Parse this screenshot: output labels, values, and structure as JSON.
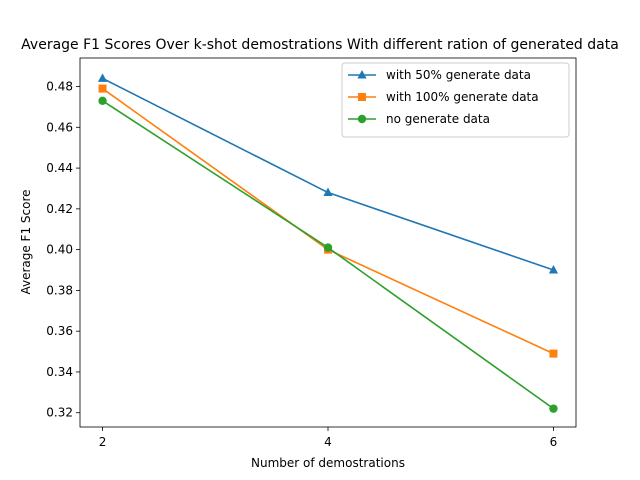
{
  "chart_data": {
    "type": "line",
    "title": "Average F1 Scores Over k-shot demostrations With different ration of generated data",
    "xlabel": "Number of demostrations",
    "ylabel": "Average F1 Score",
    "x": [
      2,
      4,
      6
    ],
    "xticks": [
      "2",
      "4",
      "6"
    ],
    "ylim": [
      0.313,
      0.494
    ],
    "yticks": [
      "0.32",
      "0.34",
      "0.36",
      "0.38",
      "0.40",
      "0.42",
      "0.44",
      "0.46",
      "0.48"
    ],
    "ytick_values": [
      0.32,
      0.34,
      0.36,
      0.38,
      0.4,
      0.42,
      0.44,
      0.46,
      0.48
    ],
    "grid": false,
    "legend_position": "top-right",
    "series": [
      {
        "name": "with 50% generate data",
        "values": [
          0.484,
          0.428,
          0.39
        ],
        "color": "#1f77b4",
        "marker": "triangle"
      },
      {
        "name": "with 100% generate data",
        "values": [
          0.479,
          0.4,
          0.349
        ],
        "color": "#ff7f0e",
        "marker": "square"
      },
      {
        "name": "no generate data",
        "values": [
          0.473,
          0.401,
          0.322
        ],
        "color": "#2ca02c",
        "marker": "circle"
      }
    ]
  }
}
